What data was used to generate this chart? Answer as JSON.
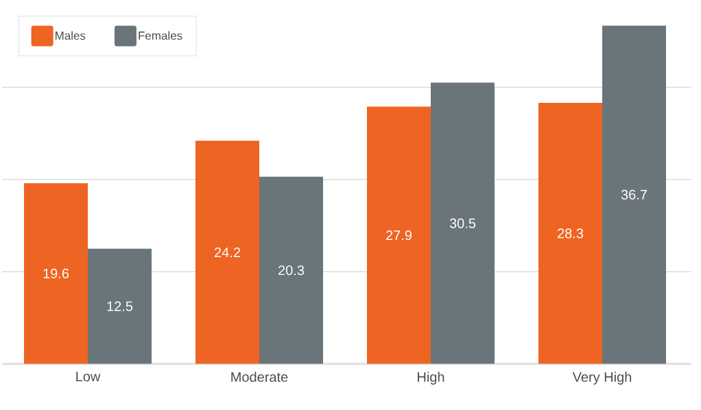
{
  "chart_data": {
    "type": "bar",
    "categories": [
      "Low",
      "Moderate",
      "High",
      "Very High"
    ],
    "series": [
      {
        "name": "Males",
        "color": "#ee6422",
        "values": [
          19.6,
          24.2,
          27.9,
          28.3
        ]
      },
      {
        "name": "Females",
        "color": "#6a747b",
        "values": [
          12.5,
          20.3,
          30.5,
          36.7
        ]
      }
    ],
    "ylim": [
      0,
      40
    ],
    "yticks": [
      {
        "value": 10,
        "label": null
      },
      {
        "value": 20,
        "label": null
      },
      {
        "value": 30,
        "label": null
      },
      {
        "value": 40,
        "label": null
      }
    ],
    "tick_labels": "x",
    "grid": "y",
    "legend": "top left",
    "data_labels": true
  }
}
